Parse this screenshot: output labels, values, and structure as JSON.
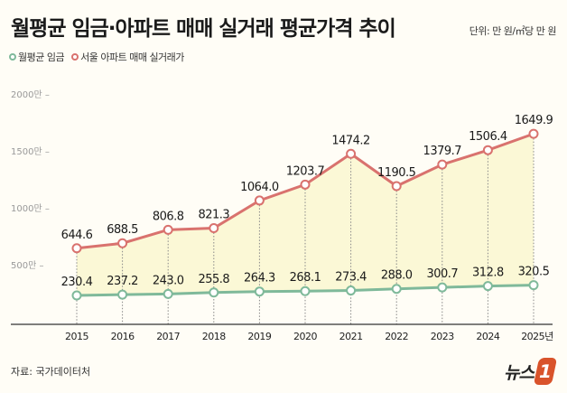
{
  "title": "월평균 임금·아파트 매매 실거래 평균가격 추이",
  "unit": "단위: 만 원/㎡당 만 원",
  "source": "자료: 국가데이터처",
  "logo": "뉴스1",
  "colors": {
    "wage": "#7fb99a",
    "apartment": "#d9726e",
    "fill": "#fbf8d6",
    "background": "#fffdf6"
  },
  "chart_data": {
    "type": "line",
    "title": "월평균 임금·아파트 매매 실거래 평균가격 추이",
    "x": [
      "2015",
      "2016",
      "2017",
      "2018",
      "2019",
      "2020",
      "2021",
      "2022",
      "2023",
      "2024",
      "2025년"
    ],
    "y_ticks": [
      "500만",
      "1000만",
      "1500만",
      "2000만"
    ],
    "y_tick_values": [
      500,
      1000,
      1500,
      2000
    ],
    "ylim": [
      0,
      2000
    ],
    "grid": "vertical dotted lines",
    "legend": "top-left",
    "series": [
      {
        "name": "월평균 임금",
        "values": [
          230.4,
          237.2,
          243.0,
          255.8,
          264.3,
          268.1,
          273.4,
          288.0,
          300.7,
          312.8,
          320.5
        ],
        "labels": [
          "230.4",
          "237.2",
          "243.0",
          "255.8",
          "264.3",
          "268.1",
          "273.4",
          "288.0",
          "300.7",
          "312.8",
          "320.5"
        ]
      },
      {
        "name": "서울 아파트 매매 실거래가",
        "values": [
          644.6,
          688.5,
          806.8,
          821.3,
          1064.0,
          1203.7,
          1474.2,
          1190.5,
          1379.7,
          1506.4,
          1649.9
        ],
        "labels": [
          "644.6",
          "688.5",
          "806.8",
          "821.3",
          "1064.0",
          "1203.7",
          "1474.2",
          "1190.5",
          "1379.7",
          "1506.4",
          "1649.9"
        ]
      }
    ]
  }
}
